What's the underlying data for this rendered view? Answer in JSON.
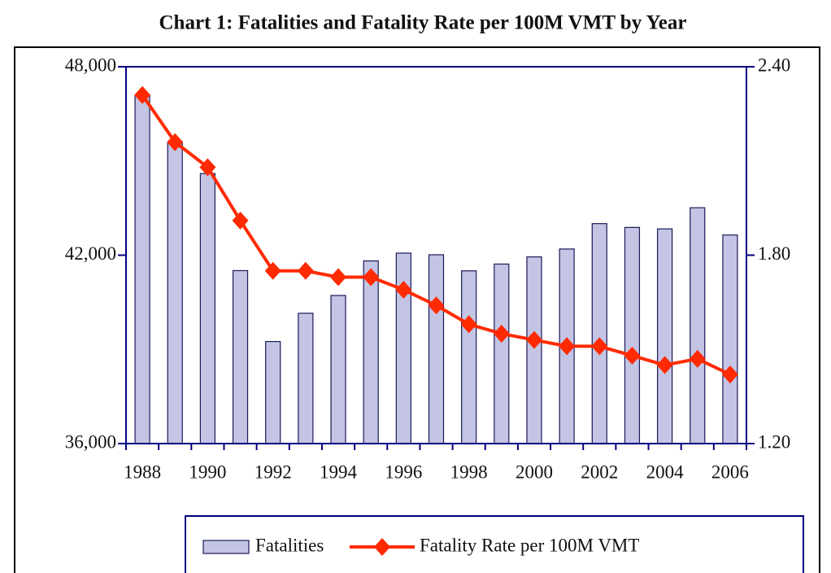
{
  "chart_data": {
    "type": "bar",
    "title": "Chart 1: Fatalities and Fatality Rate per 100M VMT by Year",
    "categories": [
      "1988",
      null,
      "1990",
      null,
      "1992",
      null,
      "1994",
      null,
      "1996",
      null,
      "1998",
      null,
      "2000",
      null,
      "2002",
      null,
      "2004",
      null,
      "2006"
    ],
    "series": [
      {
        "name": "Fatalities",
        "type": "bar",
        "color": "#c4c4e4",
        "values": [
          47087,
          45582,
          44599,
          41508,
          39250,
          40150,
          40716,
          41817,
          42065,
          42013,
          41501,
          41717,
          41945,
          42196,
          43005,
          42884,
          42836,
          43510,
          42642
        ]
      },
      {
        "name": "Fatality Rate per 100M VMT",
        "type": "line",
        "axis": "y2",
        "color": "#ff2a00",
        "values": [
          2.31,
          2.16,
          2.08,
          1.91,
          1.75,
          1.75,
          1.73,
          1.73,
          1.69,
          1.64,
          1.58,
          1.55,
          1.53,
          1.51,
          1.51,
          1.48,
          1.45,
          1.47,
          1.42
        ]
      }
    ],
    "ylim": [
      36000,
      48000
    ],
    "yticks": [
      {
        "value": 36000,
        "label": "36,000"
      },
      {
        "value": 42000,
        "label": "42,000"
      },
      {
        "value": 48000,
        "label": "48,000"
      }
    ],
    "y2lim": [
      1.2,
      2.4
    ],
    "y2ticks": [
      {
        "value": 1.2,
        "label": "1.20"
      },
      {
        "value": 1.8,
        "label": "1.80"
      },
      {
        "value": 2.4,
        "label": "2.40"
      }
    ],
    "legend": "bottom"
  }
}
